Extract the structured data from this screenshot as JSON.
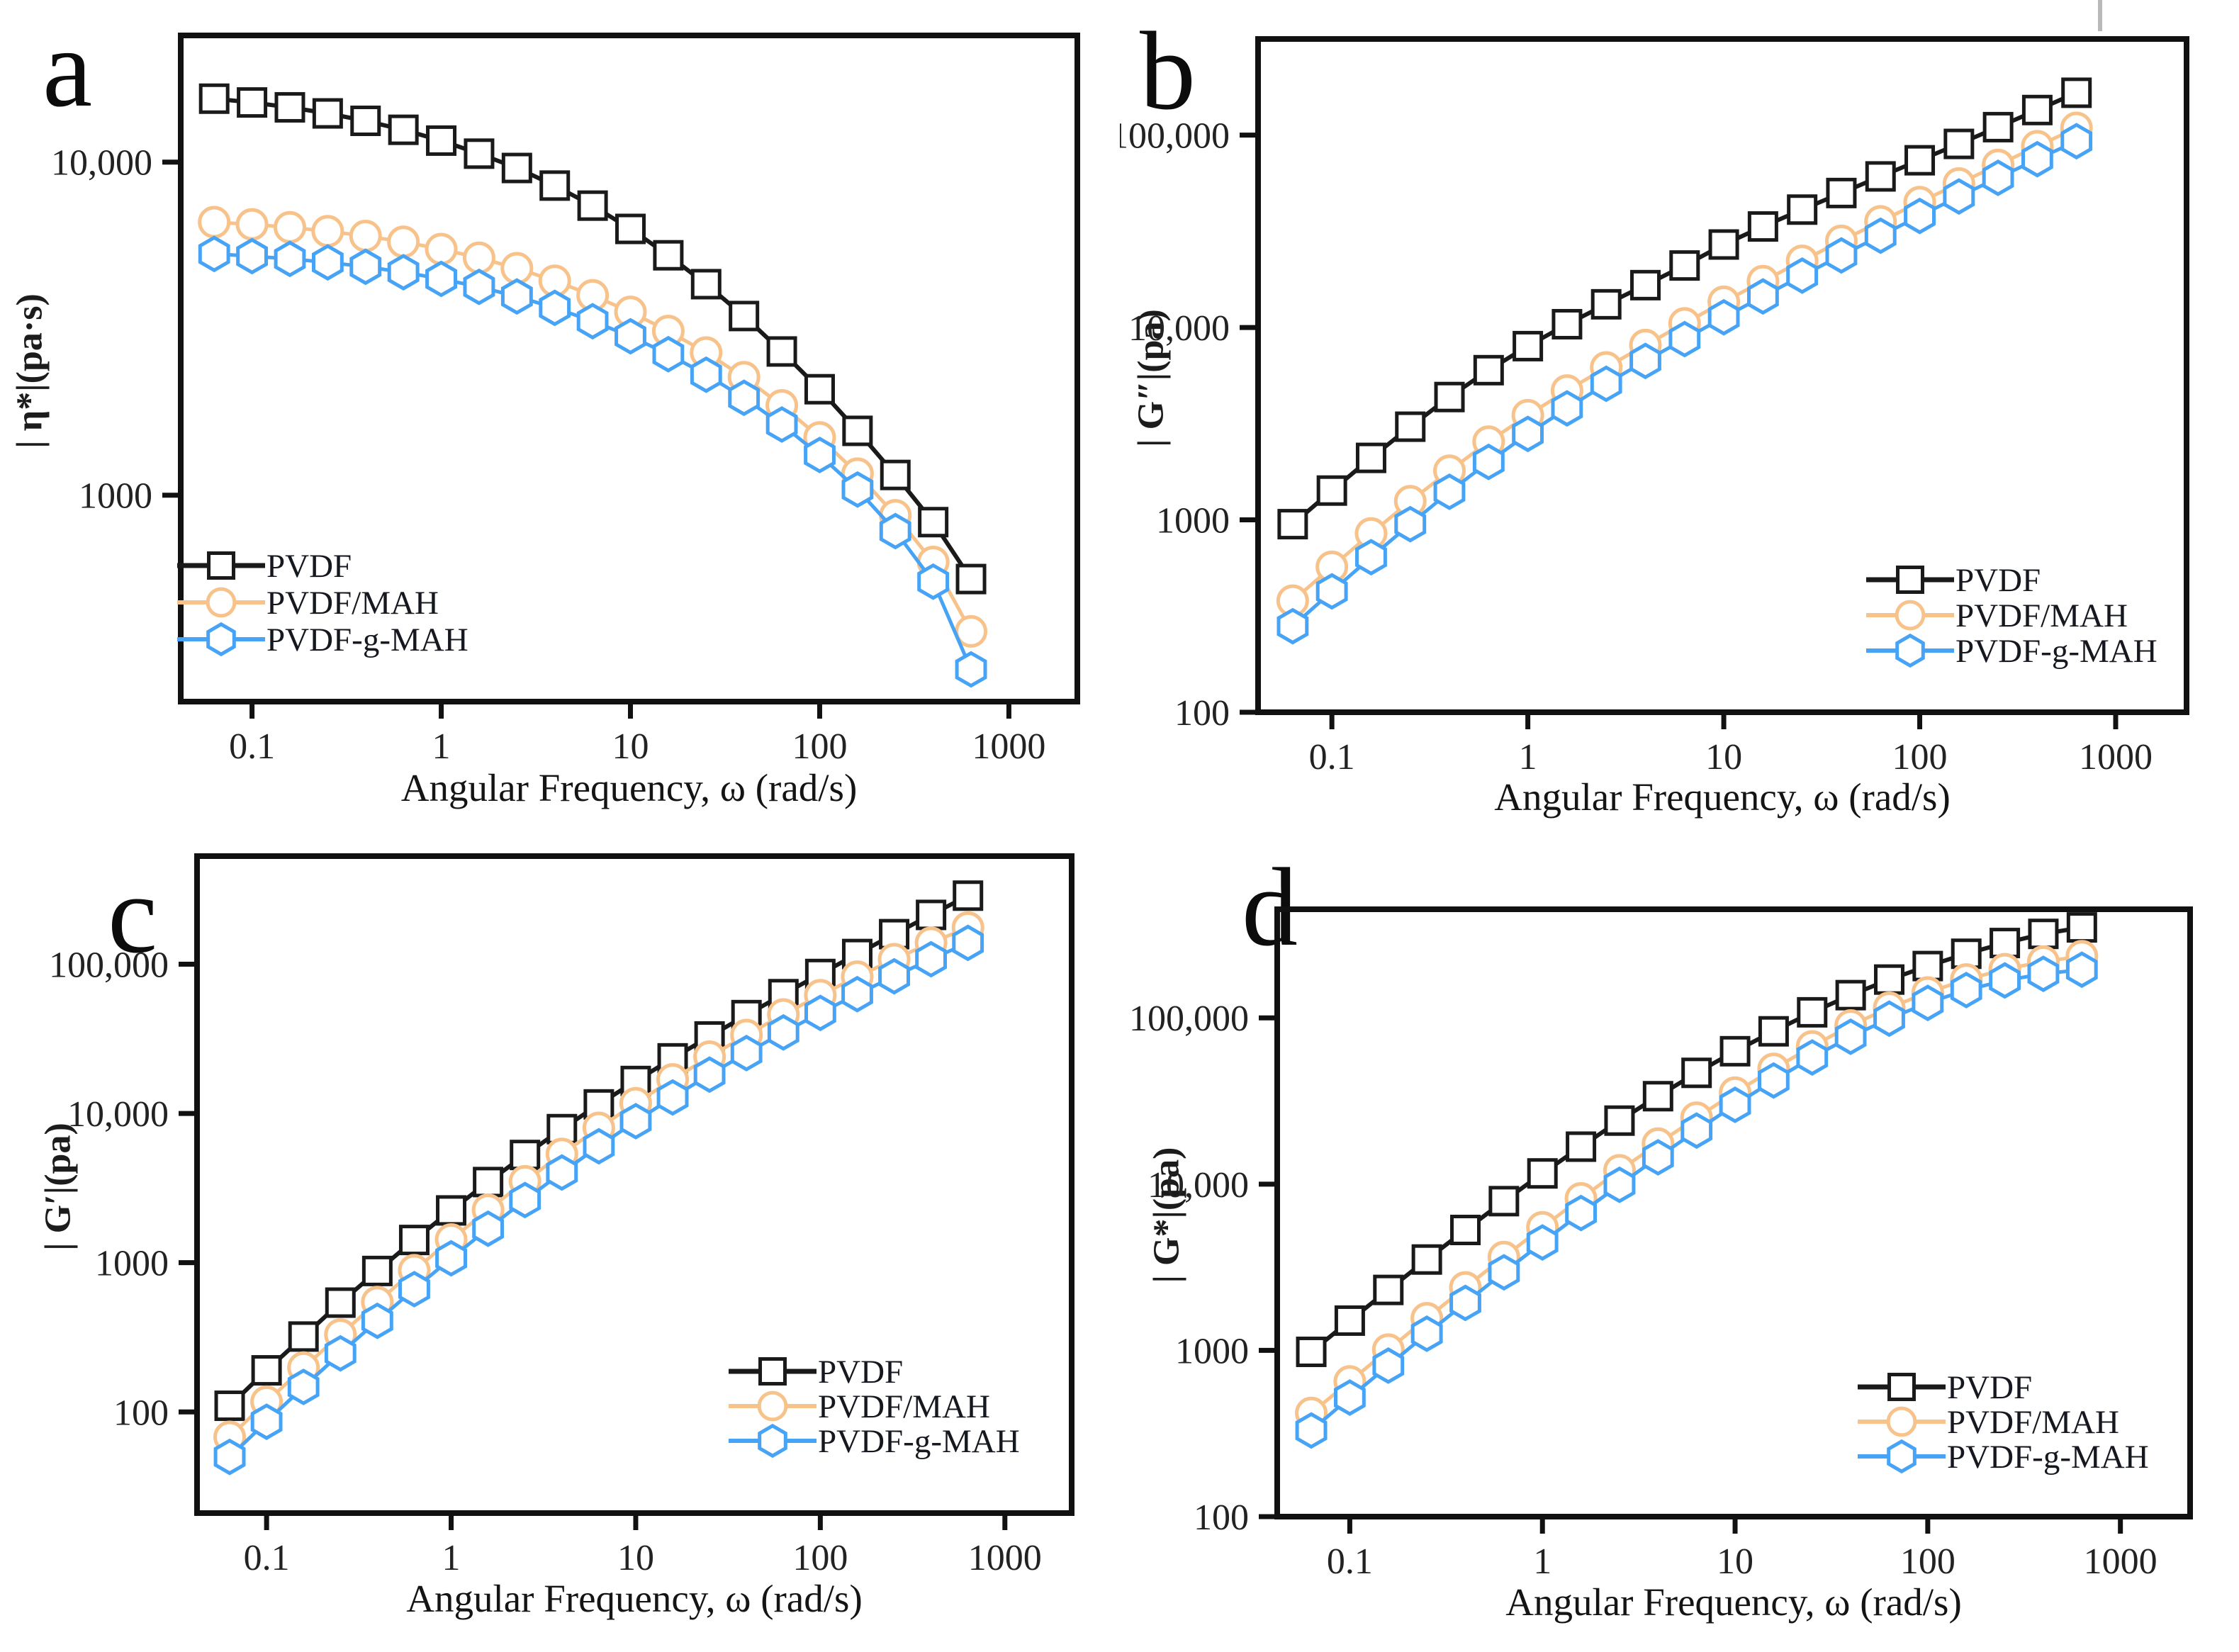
{
  "figure": {
    "background": "#ffffff",
    "axis_color": "#111111",
    "tick_label_color": "#222222",
    "series": [
      {
        "label": "PVDF",
        "color": "#1a1a1a",
        "marker": "square"
      },
      {
        "label": "PVDF/MAH",
        "color": "#f8c28b",
        "marker": "circle"
      },
      {
        "label": "PVDF-g-MAH",
        "color": "#46a3f5",
        "marker": "hexagon"
      }
    ]
  },
  "chart_data": [
    {
      "id": "a",
      "letter": "a",
      "type": "line",
      "ylabel": "| η*|(pa·s)",
      "xlabel": "Angular Frequency, ω (rad/s)",
      "x": [
        0.0631,
        0.1,
        0.1585,
        0.2512,
        0.3981,
        0.631,
        1,
        1.585,
        2.512,
        3.981,
        6.31,
        10,
        15.85,
        25.12,
        39.81,
        63.1,
        100,
        158.5,
        251.2,
        398.1,
        631
      ],
      "x_tick_values": [
        0.1,
        1,
        10,
        100,
        1000
      ],
      "x_ticks": [
        "0.1",
        "1",
        "10",
        "100",
        "1000"
      ],
      "y_ticks": [
        {
          "v": 1000,
          "label": "1000"
        },
        {
          "v": 10000,
          "label": "10,000"
        }
      ],
      "x_range": [
        0.042,
        2300
      ],
      "y_range": [
        240,
        24000
      ],
      "grid": false,
      "legend_position": "lower-left",
      "series": [
        {
          "name": "PVDF",
          "values": [
            15500,
            15100,
            14600,
            14000,
            13300,
            12500,
            11600,
            10600,
            9600,
            8500,
            7400,
            6300,
            5250,
            4300,
            3450,
            2700,
            2080,
            1560,
            1150,
            830,
            560
          ]
        },
        {
          "name": "PVDF/MAH",
          "values": [
            6600,
            6500,
            6370,
            6200,
            6000,
            5760,
            5480,
            5160,
            4800,
            4400,
            3980,
            3550,
            3110,
            2680,
            2260,
            1860,
            1490,
            1160,
            870,
            630,
            390
          ]
        },
        {
          "name": "PVDF-g-MAH",
          "values": [
            5300,
            5220,
            5120,
            5000,
            4850,
            4670,
            4460,
            4220,
            3950,
            3650,
            3330,
            3000,
            2650,
            2300,
            1960,
            1630,
            1320,
            1040,
            780,
            550,
            300
          ]
        }
      ]
    },
    {
      "id": "b",
      "letter": "b",
      "type": "line",
      "ylabel": "| G″|(pa)",
      "xlabel": "Angular Frequency, ω (rad/s)",
      "x": [
        0.0631,
        0.1,
        0.1585,
        0.2512,
        0.3981,
        0.631,
        1,
        1.585,
        2.512,
        3.981,
        6.31,
        10,
        15.85,
        25.12,
        39.81,
        63.1,
        100,
        158.5,
        251.2,
        398.1,
        631
      ],
      "x_tick_values": [
        0.1,
        1,
        10,
        100,
        1000
      ],
      "x_ticks": [
        "0.1",
        "1",
        "10",
        "100",
        "1000"
      ],
      "y_ticks": [
        {
          "v": 100,
          "label": "100"
        },
        {
          "v": 1000,
          "label": "1000"
        },
        {
          "v": 10000,
          "label": "10,000"
        },
        {
          "v": 100000,
          "label": "100,000"
        }
      ],
      "x_range": [
        0.042,
        2300
      ],
      "y_range": [
        100,
        316000
      ],
      "grid": false,
      "legend_position": "lower-right",
      "series": [
        {
          "name": "PVDF",
          "values": [
            950,
            1420,
            2100,
            3050,
            4350,
            6000,
            8000,
            10400,
            13200,
            16600,
            21000,
            27000,
            33500,
            41000,
            50000,
            61000,
            74000,
            90000,
            110000,
            135000,
            166000
          ]
        },
        {
          "name": "PVDF/MAH",
          "values": [
            380,
            570,
            850,
            1250,
            1800,
            2550,
            3500,
            4700,
            6200,
            8100,
            10500,
            13600,
            17400,
            22200,
            28200,
            35600,
            44800,
            56000,
            70000,
            87500,
            109000
          ]
        },
        {
          "name": "PVDF-g-MAH",
          "values": [
            280,
            425,
            640,
            950,
            1400,
            2000,
            2800,
            3800,
            5100,
            6700,
            8700,
            11300,
            14500,
            18600,
            23700,
            30000,
            38000,
            48000,
            60000,
            75000,
            93000
          ]
        }
      ]
    },
    {
      "id": "c",
      "letter": "c",
      "type": "line",
      "ylabel": "| G′|(pa)",
      "xlabel": "Angular Frequency, ω (rad/s)",
      "x": [
        0.0631,
        0.1,
        0.1585,
        0.2512,
        0.3981,
        0.631,
        1,
        1.585,
        2.512,
        3.981,
        6.31,
        10,
        15.85,
        25.12,
        39.81,
        63.1,
        100,
        158.5,
        251.2,
        398.1,
        631
      ],
      "x_tick_values": [
        0.1,
        1,
        10,
        100,
        1000
      ],
      "x_ticks": [
        "0.1",
        "1",
        "10",
        "100",
        "1000"
      ],
      "y_ticks": [
        {
          "v": 100,
          "label": "100"
        },
        {
          "v": 1000,
          "label": "1000"
        },
        {
          "v": 10000,
          "label": "10,000"
        },
        {
          "v": 100000,
          "label": "100,000"
        }
      ],
      "x_range": [
        0.042,
        2300
      ],
      "y_range": [
        21,
        530000
      ],
      "grid": false,
      "legend_position": "lower-right",
      "series": [
        {
          "name": "PVDF",
          "values": [
            110,
            190,
            320,
            540,
            880,
            1420,
            2240,
            3470,
            5270,
            7850,
            11500,
            16500,
            23400,
            32800,
            45600,
            63000,
            86000,
            117000,
            159000,
            214000,
            288000
          ]
        },
        {
          "name": "PVDF/MAH",
          "values": [
            68,
            117,
            198,
            330,
            545,
            890,
            1430,
            2260,
            3510,
            5350,
            8000,
            11700,
            16900,
            24000,
            33500,
            46000,
            62000,
            82500,
            108000,
            139000,
            176000
          ]
        },
        {
          "name": "PVDF-g-MAH",
          "values": [
            50,
            86,
            147,
            247,
            408,
            665,
            1070,
            1690,
            2630,
            4020,
            6030,
            8880,
            12800,
            18200,
            25400,
            34900,
            47200,
            63000,
            83000,
            108000,
            139000
          ]
        }
      ]
    },
    {
      "id": "d",
      "letter": "d",
      "type": "line",
      "ylabel": "| G*|(pa)",
      "xlabel": "Angular Frequency, ω (rad/s)",
      "x": [
        0.0631,
        0.1,
        0.1585,
        0.2512,
        0.3981,
        0.631,
        1,
        1.585,
        2.512,
        3.981,
        6.31,
        10,
        15.85,
        25.12,
        39.81,
        63.1,
        100,
        158.5,
        251.2,
        398.1,
        631
      ],
      "x_tick_values": [
        0.1,
        1,
        10,
        100,
        1000
      ],
      "x_ticks": [
        "0.1",
        "1",
        "10",
        "100",
        "1000"
      ],
      "y_ticks": [
        {
          "v": 100,
          "label": "100"
        },
        {
          "v": 1000,
          "label": "1000"
        },
        {
          "v": 10000,
          "label": "10,000"
        },
        {
          "v": 100000,
          "label": "100,000"
        }
      ],
      "x_range": [
        0.042,
        2300
      ],
      "y_range": [
        100,
        450000
      ],
      "grid": false,
      "legend_position": "lower-right",
      "series": [
        {
          "name": "PVDF",
          "values": [
            980,
            1510,
            2310,
            3520,
            5300,
            7900,
            11600,
            16800,
            24100,
            33800,
            46700,
            63000,
            83000,
            108000,
            137000,
            170000,
            205000,
            243000,
            282000,
            320000,
            350000
          ]
        },
        {
          "name": "PVDF/MAH",
          "values": [
            420,
            650,
            1010,
            1560,
            2390,
            3640,
            5500,
            8200,
            12100,
            17500,
            25100,
            35500,
            49300,
            67300,
            90000,
            115000,
            142000,
            170000,
            196000,
            218000,
            235000
          ]
        },
        {
          "name": "PVDF-g-MAH",
          "values": [
            330,
            520,
            810,
            1260,
            1930,
            2950,
            4460,
            6700,
            9900,
            14500,
            21000,
            30000,
            42000,
            57800,
            77000,
            99000,
            123000,
            147000,
            168000,
            184000,
            195000
          ]
        }
      ]
    }
  ]
}
